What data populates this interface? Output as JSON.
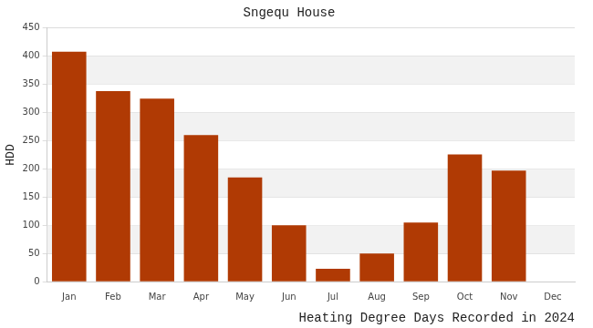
{
  "chart_data": {
    "type": "bar",
    "title": "Sngequ House",
    "x_label": "Heating Degree Days Recorded in 2024",
    "y_label": "HDD",
    "categories": [
      "Jan",
      "Feb",
      "Mar",
      "Apr",
      "May",
      "Jun",
      "Jul",
      "Aug",
      "Sep",
      "Oct",
      "Nov",
      "Dec"
    ],
    "values": [
      408,
      338,
      325,
      260,
      185,
      100,
      23,
      50,
      105,
      226,
      197,
      null
    ],
    "color": "#b03a04",
    "ylim": [
      0,
      450
    ],
    "yticks": [
      0,
      50,
      100,
      150,
      200,
      250,
      300,
      350,
      400,
      450
    ],
    "grid": true
  }
}
